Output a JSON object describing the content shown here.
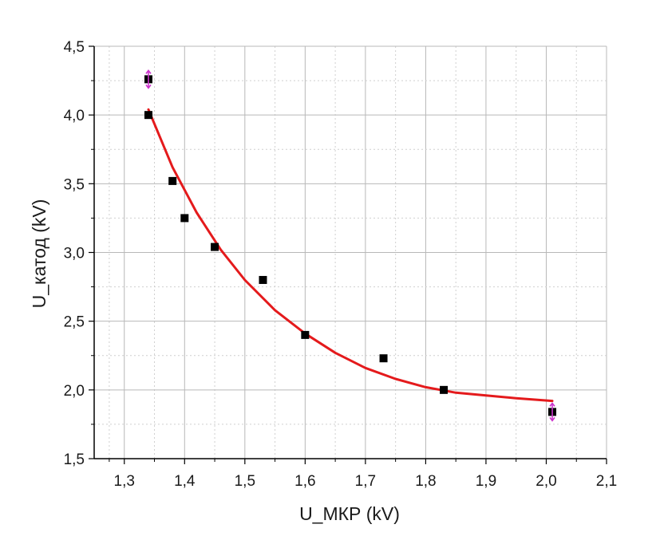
{
  "chart_data": {
    "type": "scatter",
    "xlabel": "U_МКР (kV)",
    "ylabel": "U_катод (kV)",
    "xlim": [
      1.25,
      2.1
    ],
    "ylim": [
      1.5,
      4.5
    ],
    "x_ticks": [
      "1,3",
      "1,4",
      "1,5",
      "1,6",
      "1,7",
      "1,8",
      "1,9",
      "2,0",
      "2,1"
    ],
    "x_tick_values": [
      1.3,
      1.4,
      1.5,
      1.6,
      1.7,
      1.8,
      1.9,
      2.0,
      2.1
    ],
    "y_ticks": [
      "1,5",
      "2,0",
      "2,5",
      "3,0",
      "3,5",
      "4,0",
      "4,5"
    ],
    "y_tick_values": [
      1.5,
      2.0,
      2.5,
      3.0,
      3.5,
      4.0,
      4.5
    ],
    "grid": true,
    "points": {
      "x": [
        1.34,
        1.34,
        1.38,
        1.4,
        1.45,
        1.53,
        1.6,
        1.73,
        1.83,
        2.01
      ],
      "y": [
        4.26,
        4.0,
        3.52,
        3.25,
        3.04,
        2.8,
        2.4,
        2.23,
        2.0,
        1.84
      ],
      "color": "#000000"
    },
    "highlighted_points": {
      "x": [
        1.34,
        2.01
      ],
      "y": [
        4.26,
        1.84
      ],
      "color": "#cc33cc"
    },
    "fit_curve": {
      "color": "#e41a1c",
      "x": [
        1.34,
        1.38,
        1.42,
        1.46,
        1.5,
        1.55,
        1.6,
        1.65,
        1.7,
        1.75,
        1.8,
        1.85,
        1.9,
        1.95,
        2.01
      ],
      "y": [
        4.04,
        3.62,
        3.29,
        3.02,
        2.8,
        2.58,
        2.41,
        2.27,
        2.16,
        2.08,
        2.02,
        1.98,
        1.96,
        1.94,
        1.92
      ]
    }
  }
}
